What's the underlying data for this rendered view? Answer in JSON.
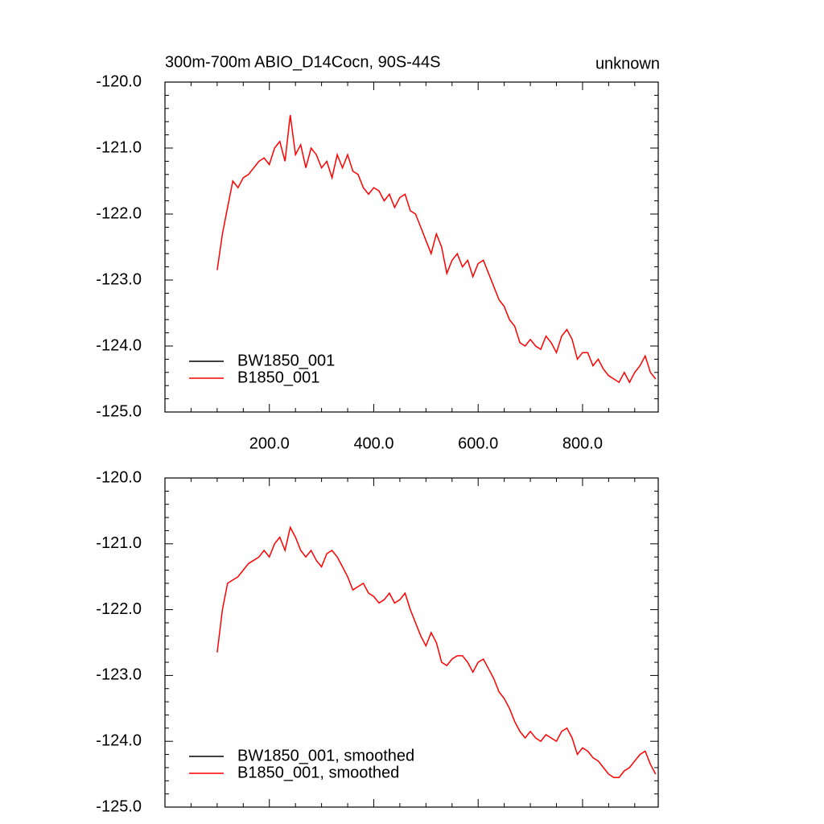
{
  "chart_data": [
    {
      "type": "line",
      "title": "300m-700m ABIO_D14Cocn, 90S-44S",
      "title_right": "unknown",
      "x": [
        100,
        110,
        120,
        130,
        140,
        150,
        160,
        170,
        180,
        190,
        200,
        210,
        220,
        230,
        240,
        250,
        260,
        270,
        280,
        290,
        300,
        310,
        320,
        330,
        340,
        350,
        360,
        370,
        380,
        390,
        400,
        410,
        420,
        430,
        440,
        450,
        460,
        470,
        480,
        490,
        500,
        510,
        520,
        530,
        540,
        550,
        560,
        570,
        580,
        590,
        600,
        610,
        620,
        630,
        640,
        650,
        660,
        670,
        680,
        690,
        700,
        710,
        720,
        730,
        740,
        750,
        760,
        770,
        780,
        790,
        800,
        810,
        820,
        830,
        840,
        850,
        860,
        870,
        880,
        890,
        900,
        910,
        920,
        930,
        940
      ],
      "series": [
        {
          "name": "BW1850_001",
          "color": "#000000",
          "values": [
            null,
            null,
            null,
            null,
            null,
            null,
            null,
            null,
            null,
            null,
            null,
            null,
            null,
            null,
            null,
            null,
            null,
            null,
            null,
            null,
            null,
            null,
            null,
            null,
            null,
            null,
            null,
            null,
            null,
            null,
            null,
            null,
            null,
            null,
            null,
            null,
            null,
            null,
            null,
            null,
            null,
            null,
            null,
            null,
            null,
            null,
            null,
            null,
            null,
            null,
            null,
            null,
            null,
            null,
            null,
            null,
            null,
            null,
            null,
            null,
            null,
            null,
            null,
            null,
            null,
            null,
            null,
            null,
            null,
            null,
            null,
            null,
            null,
            null,
            null,
            null,
            null,
            null,
            null,
            null,
            null,
            null,
            null,
            null,
            null
          ]
        },
        {
          "name": "B1850_001",
          "color": "#ff0000",
          "values": [
            -122.85,
            -122.3,
            -121.9,
            -121.5,
            -121.6,
            -121.45,
            -121.4,
            -121.3,
            -121.2,
            -121.15,
            -121.25,
            -121.0,
            -120.9,
            -121.2,
            -120.5,
            -121.1,
            -120.95,
            -121.3,
            -121.0,
            -121.1,
            -121.3,
            -121.2,
            -121.45,
            -121.1,
            -121.3,
            -121.1,
            -121.35,
            -121.4,
            -121.6,
            -121.7,
            -121.6,
            -121.65,
            -121.8,
            -121.7,
            -121.9,
            -121.75,
            -121.7,
            -121.95,
            -122.0,
            -122.2,
            -122.4,
            -122.6,
            -122.3,
            -122.5,
            -122.9,
            -122.7,
            -122.6,
            -122.8,
            -122.7,
            -122.95,
            -122.75,
            -122.7,
            -122.9,
            -123.1,
            -123.3,
            -123.4,
            -123.6,
            -123.7,
            -123.95,
            -124.0,
            -123.9,
            -124.0,
            -124.05,
            -123.85,
            -123.95,
            -124.1,
            -123.85,
            -123.75,
            -123.9,
            -124.2,
            -124.1,
            -124.1,
            -124.3,
            -124.2,
            -124.35,
            -124.45,
            -124.5,
            -124.55,
            -124.4,
            -124.55,
            -124.4,
            -124.3,
            -124.15,
            -124.4,
            -124.5
          ]
        }
      ],
      "xlim": [
        0,
        945
      ],
      "ylim": [
        -125,
        -120
      ],
      "xticks": [
        {
          "value": 200,
          "label": "200.0"
        },
        {
          "value": 400,
          "label": "400.0"
        },
        {
          "value": 600,
          "label": "600.0"
        },
        {
          "value": 800,
          "label": "800.0"
        }
      ],
      "yticks": [
        {
          "value": -125,
          "label": "-125.0"
        },
        {
          "value": -124,
          "label": "-124.0"
        },
        {
          "value": -123,
          "label": "-123.0"
        },
        {
          "value": -122,
          "label": "-122.0"
        },
        {
          "value": -121,
          "label": "-121.0"
        },
        {
          "value": -120,
          "label": "-120.0"
        }
      ],
      "legend": "lower left"
    },
    {
      "type": "line",
      "x": [
        100,
        110,
        120,
        130,
        140,
        150,
        160,
        170,
        180,
        190,
        200,
        210,
        220,
        230,
        240,
        250,
        260,
        270,
        280,
        290,
        300,
        310,
        320,
        330,
        340,
        350,
        360,
        370,
        380,
        390,
        400,
        410,
        420,
        430,
        440,
        450,
        460,
        470,
        480,
        490,
        500,
        510,
        520,
        530,
        540,
        550,
        560,
        570,
        580,
        590,
        600,
        610,
        620,
        630,
        640,
        650,
        660,
        670,
        680,
        690,
        700,
        710,
        720,
        730,
        740,
        750,
        760,
        770,
        780,
        790,
        800,
        810,
        820,
        830,
        840,
        850,
        860,
        870,
        880,
        890,
        900,
        910,
        920,
        930,
        940
      ],
      "series": [
        {
          "name": "BW1850_001, smoothed",
          "color": "#000000",
          "values": [
            null,
            null,
            null,
            null,
            null,
            null,
            null,
            null,
            null,
            null,
            null,
            null,
            null,
            null,
            null,
            null,
            null,
            null,
            null,
            null,
            null,
            null,
            null,
            null,
            null,
            null,
            null,
            null,
            null,
            null,
            null,
            null,
            null,
            null,
            null,
            null,
            null,
            null,
            null,
            null,
            null,
            null,
            null,
            null,
            null,
            null,
            null,
            null,
            null,
            null,
            null,
            null,
            null,
            null,
            null,
            null,
            null,
            null,
            null,
            null,
            null,
            null,
            null,
            null,
            null,
            null,
            null,
            null,
            null,
            null,
            null,
            null,
            null,
            null,
            null,
            null,
            null,
            null,
            null,
            null,
            null,
            null,
            null,
            null,
            null
          ]
        },
        {
          "name": "B1850_001, smoothed",
          "color": "#ff0000",
          "values": [
            -122.65,
            -122.0,
            -121.6,
            -121.55,
            -121.5,
            -121.4,
            -121.3,
            -121.25,
            -121.2,
            -121.1,
            -121.2,
            -121.0,
            -120.9,
            -121.1,
            -120.75,
            -120.9,
            -121.1,
            -121.2,
            -121.1,
            -121.25,
            -121.35,
            -121.15,
            -121.1,
            -121.2,
            -121.35,
            -121.5,
            -121.7,
            -121.65,
            -121.6,
            -121.75,
            -121.8,
            -121.9,
            -121.85,
            -121.75,
            -121.9,
            -121.85,
            -121.75,
            -122.0,
            -122.2,
            -122.4,
            -122.55,
            -122.35,
            -122.5,
            -122.8,
            -122.85,
            -122.75,
            -122.7,
            -122.7,
            -122.8,
            -122.95,
            -122.8,
            -122.75,
            -122.9,
            -123.05,
            -123.25,
            -123.35,
            -123.5,
            -123.7,
            -123.85,
            -123.95,
            -123.85,
            -123.95,
            -124.0,
            -123.9,
            -123.95,
            -124.0,
            -123.85,
            -123.8,
            -123.95,
            -124.2,
            -124.1,
            -124.15,
            -124.25,
            -124.3,
            -124.4,
            -124.5,
            -124.55,
            -124.55,
            -124.45,
            -124.4,
            -124.3,
            -124.2,
            -124.15,
            -124.35,
            -124.5
          ]
        }
      ],
      "xlim": [
        0,
        945
      ],
      "ylim": [
        -125,
        -120
      ],
      "xticks": [
        200,
        400,
        600,
        800
      ],
      "xtick_labels": false,
      "yticks": [
        {
          "value": -125,
          "label": "-125.0"
        },
        {
          "value": -124,
          "label": "-124.0"
        },
        {
          "value": -123,
          "label": "-123.0"
        },
        {
          "value": -122,
          "label": "-122.0"
        },
        {
          "value": -121,
          "label": "-121.0"
        },
        {
          "value": -120,
          "label": "-120.0"
        }
      ],
      "legend": "lower left"
    }
  ]
}
